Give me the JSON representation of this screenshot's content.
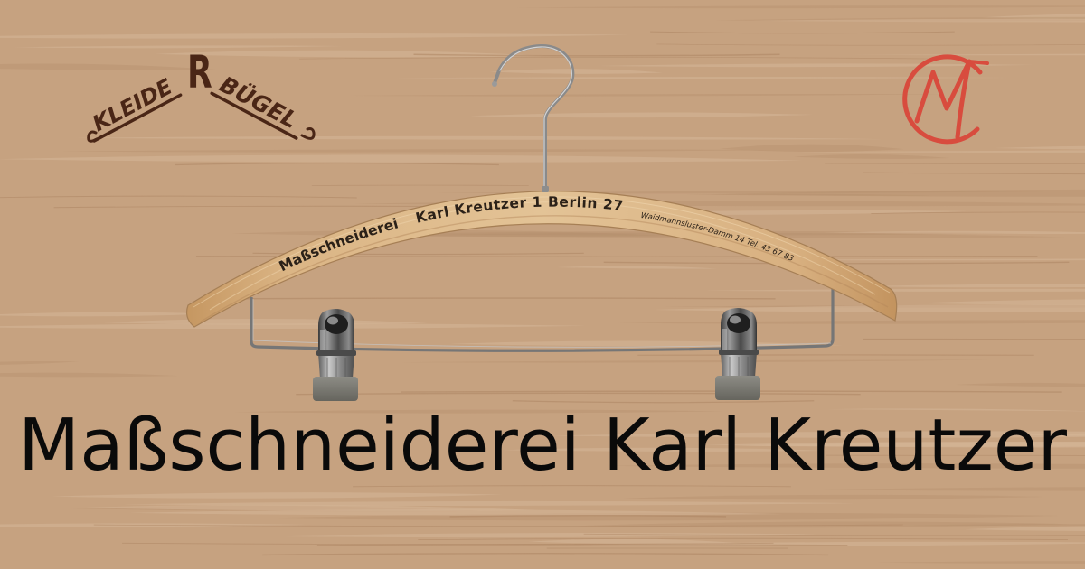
{
  "banner": {
    "title": "Maßschneiderei Karl Kreutzer"
  },
  "hanger": {
    "imprint_name": "Maßschneiderei",
    "imprint_company": "Karl Kreutzer 1 Berlin 27",
    "imprint_address": "Waidmannsluster-Damm 14 Tel. 43 67 83"
  },
  "logos": {
    "left": {
      "word_1": "KLEIDE",
      "hook_letter": "R",
      "word_2": "BÜGEL"
    },
    "right": {
      "icon": "cm-monogram-icon"
    }
  },
  "colors": {
    "background": "#c6a280",
    "title": "#0a0a0a",
    "imprint": "#2b2118",
    "logo_text": "#4a2616",
    "accent": "#d84c3e"
  }
}
